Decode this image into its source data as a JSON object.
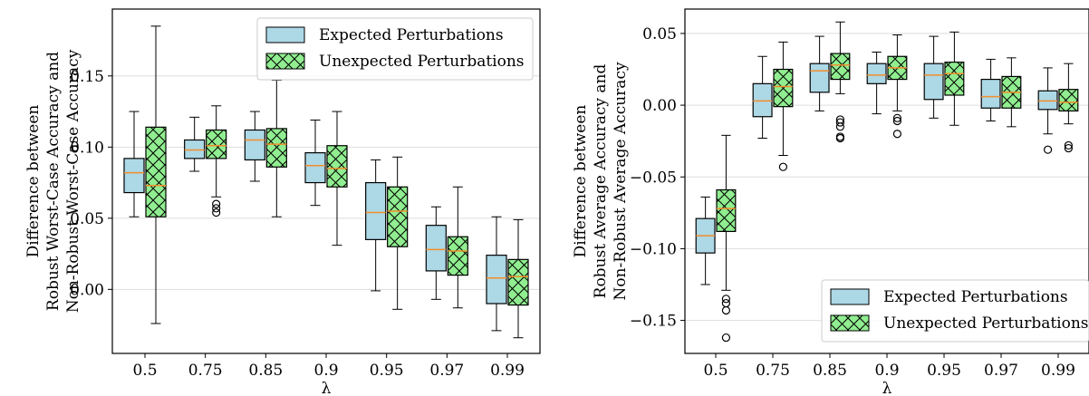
{
  "chart_data": [
    {
      "type": "box",
      "xlabel": "λ",
      "ylabel_lines": [
        "Difference between",
        "Robust Worst-Case Accuracy and",
        "Non-Robust Worst-Case Accuracy"
      ],
      "categories": [
        "0.5",
        "0.75",
        "0.85",
        "0.9",
        "0.95",
        "0.97",
        "0.99"
      ],
      "ylim": [
        -0.045,
        0.197
      ],
      "yticks": [
        0.0,
        0.05,
        0.1,
        0.15
      ],
      "ytick_labels": [
        "0.00",
        "0.05",
        "0.10",
        "0.15"
      ],
      "grid": "y",
      "legend": {
        "position": "top-right",
        "items": [
          "Expected Perturbations",
          "Unexpected Perturbations"
        ]
      },
      "series": [
        {
          "name": "Expected Perturbations",
          "color": "#add8e6",
          "hatch": "none",
          "boxes": [
            {
              "whislo": 0.051,
              "q1": 0.068,
              "med": 0.082,
              "q3": 0.092,
              "whishi": 0.125,
              "fliers": []
            },
            {
              "whislo": 0.083,
              "q1": 0.092,
              "med": 0.098,
              "q3": 0.105,
              "whishi": 0.121,
              "fliers": []
            },
            {
              "whislo": 0.076,
              "q1": 0.091,
              "med": 0.105,
              "q3": 0.112,
              "whishi": 0.125,
              "fliers": []
            },
            {
              "whislo": 0.059,
              "q1": 0.075,
              "med": 0.087,
              "q3": 0.096,
              "whishi": 0.119,
              "fliers": []
            },
            {
              "whislo": -0.001,
              "q1": 0.035,
              "med": 0.054,
              "q3": 0.075,
              "whishi": 0.091,
              "fliers": []
            },
            {
              "whislo": -0.007,
              "q1": 0.013,
              "med": 0.028,
              "q3": 0.045,
              "whishi": 0.058,
              "fliers": []
            },
            {
              "whislo": -0.029,
              "q1": -0.01,
              "med": 0.008,
              "q3": 0.024,
              "whishi": 0.051,
              "fliers": []
            }
          ]
        },
        {
          "name": "Unexpected Perturbations",
          "color": "#90ee90",
          "hatch": "crosshatch",
          "boxes": [
            {
              "whislo": -0.024,
              "q1": 0.051,
              "med": 0.073,
              "q3": 0.114,
              "whishi": 0.185,
              "fliers": []
            },
            {
              "whislo": 0.065,
              "q1": 0.092,
              "med": 0.101,
              "q3": 0.112,
              "whishi": 0.129,
              "fliers": [
                0.054,
                0.057,
                0.06
              ]
            },
            {
              "whislo": 0.051,
              "q1": 0.086,
              "med": 0.102,
              "q3": 0.113,
              "whishi": 0.147,
              "fliers": []
            },
            {
              "whislo": 0.031,
              "q1": 0.072,
              "med": 0.085,
              "q3": 0.101,
              "whishi": 0.125,
              "fliers": []
            },
            {
              "whislo": -0.014,
              "q1": 0.03,
              "med": 0.055,
              "q3": 0.072,
              "whishi": 0.093,
              "fliers": []
            },
            {
              "whislo": -0.013,
              "q1": 0.01,
              "med": 0.027,
              "q3": 0.037,
              "whishi": 0.072,
              "fliers": []
            },
            {
              "whislo": -0.034,
              "q1": -0.011,
              "med": 0.009,
              "q3": 0.021,
              "whishi": 0.049,
              "fliers": []
            }
          ]
        }
      ]
    },
    {
      "type": "box",
      "xlabel": "λ",
      "ylabel_lines": [
        "Difference between",
        "Robust Average Accuracy and",
        "Non-Robust Average Accuracy"
      ],
      "categories": [
        "0.5",
        "0.75",
        "0.85",
        "0.9",
        "0.95",
        "0.97",
        "0.99"
      ],
      "ylim": [
        -0.173,
        0.067
      ],
      "yticks": [
        -0.15,
        -0.1,
        -0.05,
        0.0,
        0.05
      ],
      "ytick_labels": [
        "−0.15",
        "−0.10",
        "−0.05",
        "0.00",
        "0.05"
      ],
      "grid": "y",
      "legend": {
        "position": "bottom-right",
        "items": [
          "Expected Perturbations",
          "Unexpected Perturbations"
        ]
      },
      "series": [
        {
          "name": "Expected Perturbations",
          "color": "#add8e6",
          "hatch": "none",
          "boxes": [
            {
              "whislo": -0.125,
              "q1": -0.103,
              "med": -0.091,
              "q3": -0.079,
              "whishi": -0.064,
              "fliers": []
            },
            {
              "whislo": -0.023,
              "q1": -0.008,
              "med": 0.003,
              "q3": 0.015,
              "whishi": 0.034,
              "fliers": []
            },
            {
              "whislo": -0.004,
              "q1": 0.009,
              "med": 0.024,
              "q3": 0.029,
              "whishi": 0.048,
              "fliers": []
            },
            {
              "whislo": -0.006,
              "q1": 0.015,
              "med": 0.021,
              "q3": 0.029,
              "whishi": 0.037,
              "fliers": []
            },
            {
              "whislo": -0.009,
              "q1": 0.004,
              "med": 0.021,
              "q3": 0.029,
              "whishi": 0.048,
              "fliers": []
            },
            {
              "whislo": -0.011,
              "q1": -0.002,
              "med": 0.006,
              "q3": 0.018,
              "whishi": 0.032,
              "fliers": []
            },
            {
              "whislo": -0.02,
              "q1": -0.003,
              "med": 0.003,
              "q3": 0.01,
              "whishi": 0.026,
              "fliers": [
                -0.031
              ]
            }
          ]
        },
        {
          "name": "Unexpected Perturbations",
          "color": "#90ee90",
          "hatch": "crosshatch",
          "boxes": [
            {
              "whislo": -0.129,
              "q1": -0.088,
              "med": -0.072,
              "q3": -0.059,
              "whishi": -0.021,
              "fliers": [
                -0.135,
                -0.138,
                -0.143,
                -0.162
              ]
            },
            {
              "whislo": -0.035,
              "q1": -0.001,
              "med": 0.013,
              "q3": 0.025,
              "whishi": 0.044,
              "fliers": [
                -0.043
              ]
            },
            {
              "whislo": 0.008,
              "q1": 0.018,
              "med": 0.028,
              "q3": 0.036,
              "whishi": 0.058,
              "fliers": [
                -0.01,
                -0.012,
                -0.015,
                -0.022,
                -0.023
              ]
            },
            {
              "whislo": -0.004,
              "q1": 0.018,
              "med": 0.026,
              "q3": 0.034,
              "whishi": 0.049,
              "fliers": [
                -0.009,
                -0.011,
                -0.02
              ]
            },
            {
              "whislo": -0.014,
              "q1": 0.007,
              "med": 0.022,
              "q3": 0.03,
              "whishi": 0.051,
              "fliers": []
            },
            {
              "whislo": -0.015,
              "q1": -0.002,
              "med": 0.009,
              "q3": 0.02,
              "whishi": 0.033,
              "fliers": []
            },
            {
              "whislo": -0.013,
              "q1": -0.004,
              "med": 0.002,
              "q3": 0.011,
              "whishi": 0.029,
              "fliers": [
                -0.028,
                -0.03
              ]
            }
          ]
        }
      ]
    }
  ]
}
